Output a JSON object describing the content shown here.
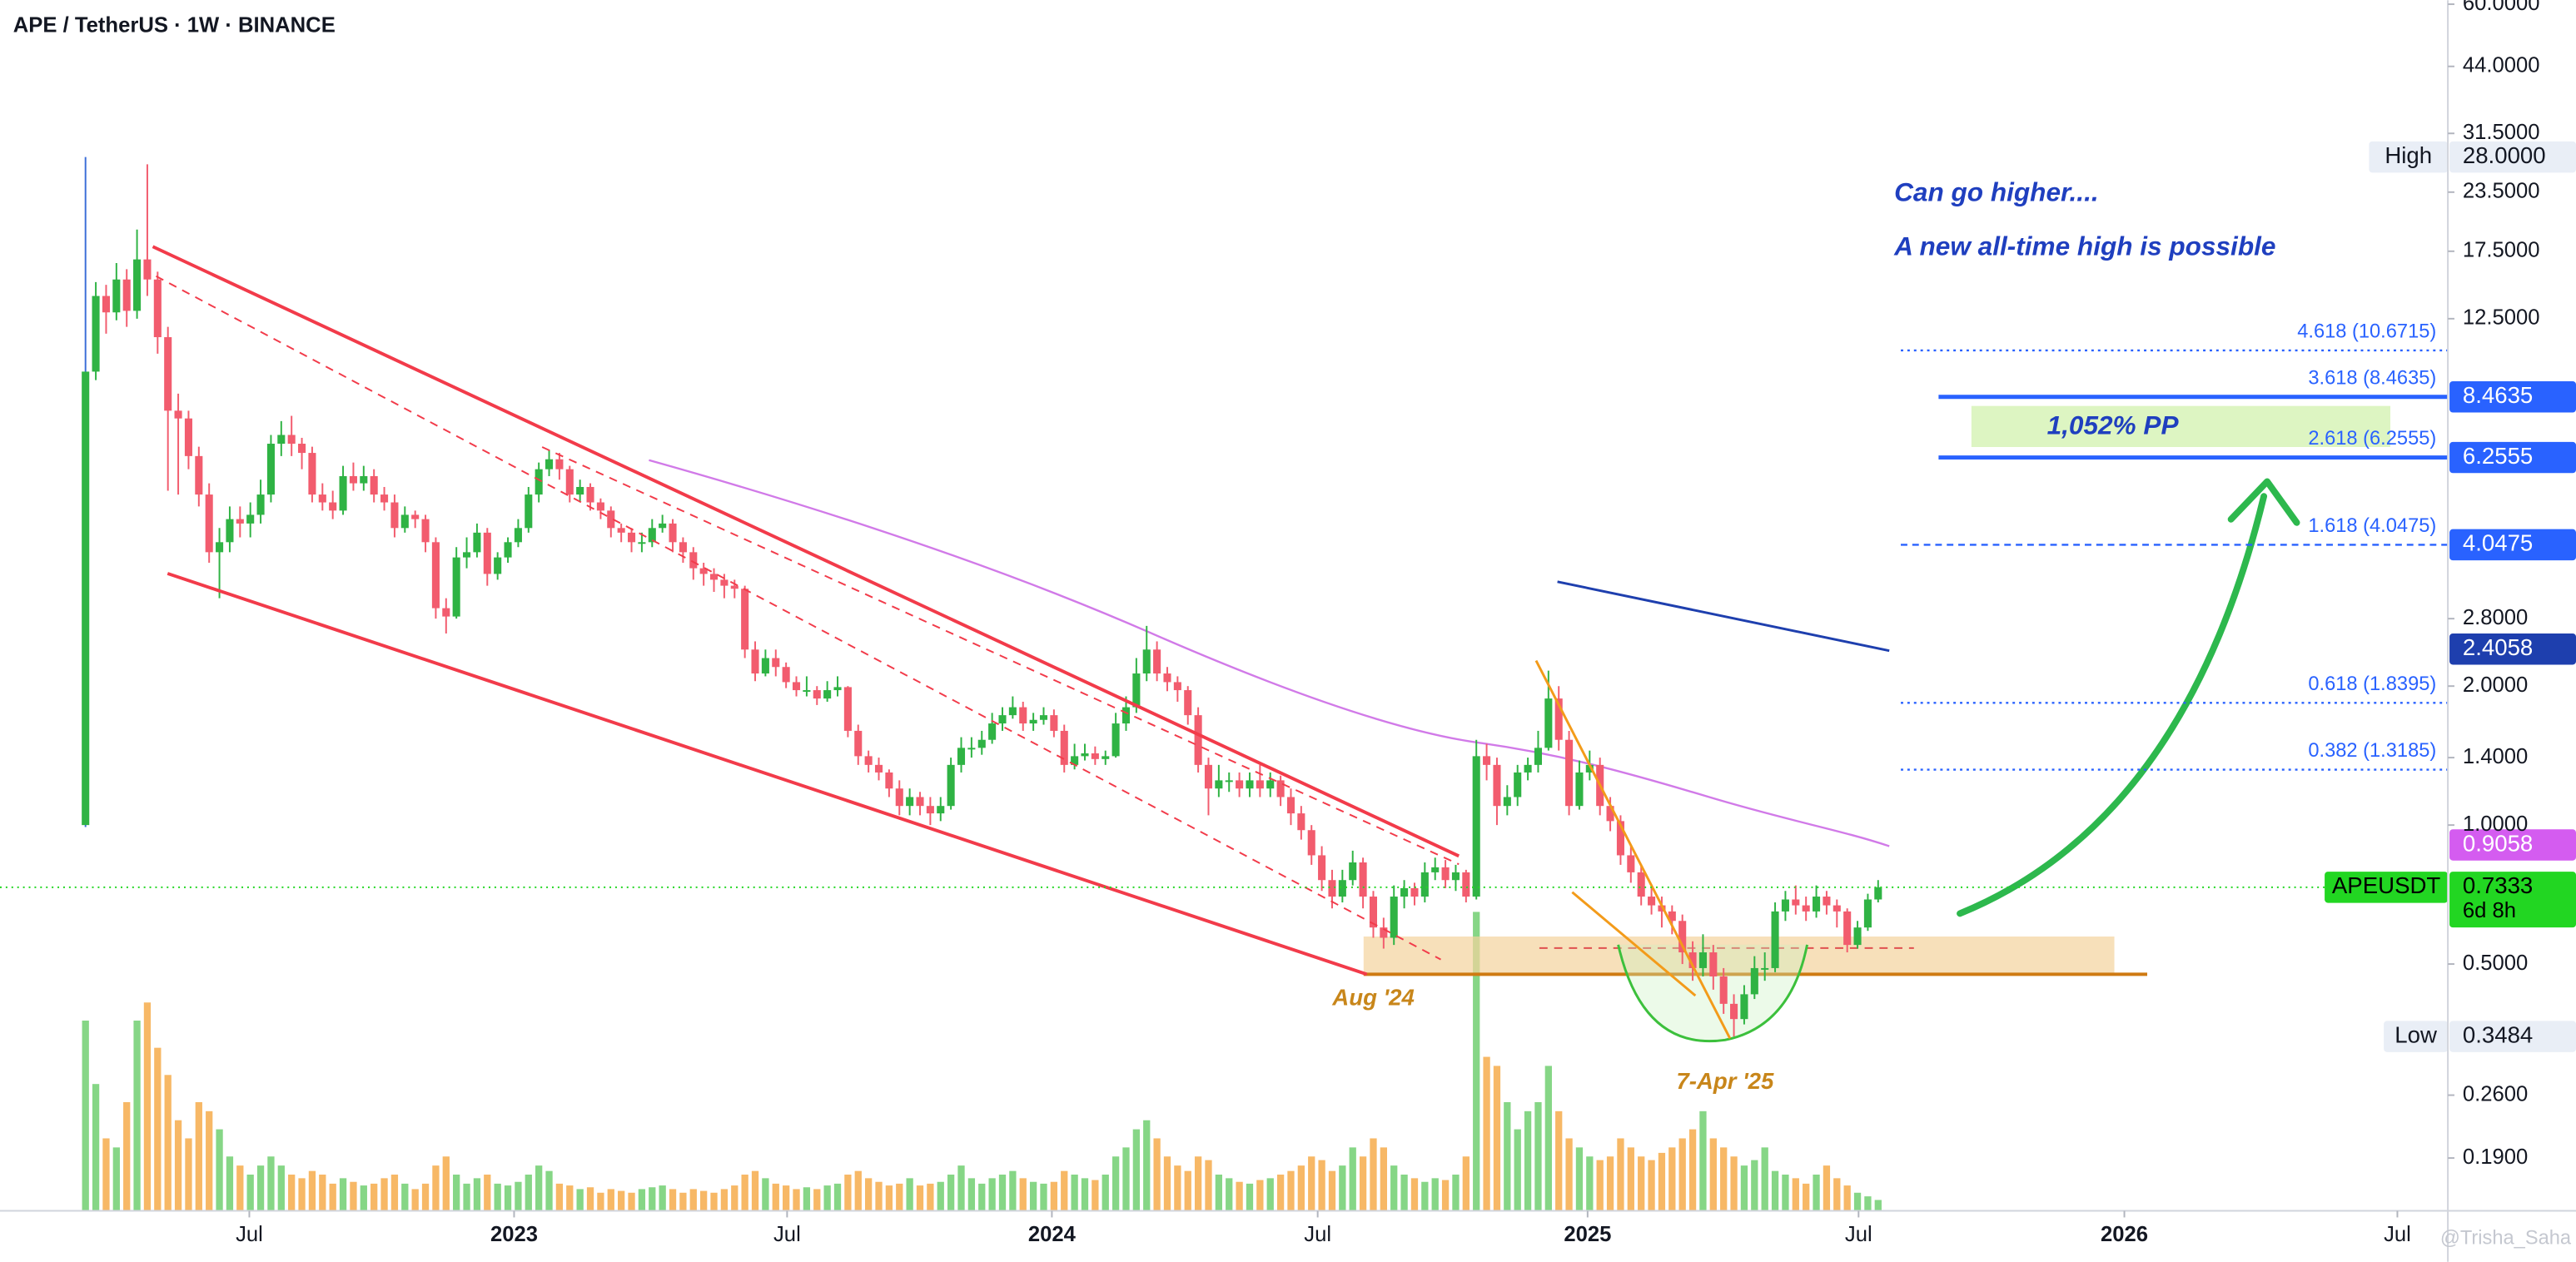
{
  "chart_data": {
    "type": "candlestick",
    "title": "APE / TetherUS · 1W · BINANCE",
    "log_scale": true,
    "up_color": "#2fb344",
    "down_color": "#f25c6e",
    "volume_up_color": "#86d686",
    "volume_down_color": "#f7b866",
    "xlim": [
      -8.3,
      229.3
    ],
    "xticks": [
      {
        "value": 15.9,
        "label": "Jul"
      },
      {
        "value": 41.6,
        "label": "2023"
      },
      {
        "value": 68.1,
        "label": "Jul"
      },
      {
        "value": 93.8,
        "label": "2024"
      },
      {
        "value": 119.6,
        "label": "Jul"
      },
      {
        "value": 145.8,
        "label": "2025"
      },
      {
        "value": 172.1,
        "label": "Jul"
      },
      {
        "value": 197.9,
        "label": "2026"
      },
      {
        "value": 224.4,
        "label": "Jul"
      }
    ],
    "ylim": [
      0.146,
      61.2
    ],
    "yticks": [
      {
        "value": 60,
        "label": "60.0000"
      },
      {
        "value": 44,
        "label": "44.0000"
      },
      {
        "value": 31.5,
        "label": "31.5000"
      },
      {
        "value": 23.5,
        "label": "23.5000"
      },
      {
        "value": 17.5,
        "label": "17.5000"
      },
      {
        "value": 12.5,
        "label": "12.5000"
      },
      {
        "value": 2.8,
        "label": "2.8000"
      },
      {
        "value": 2,
        "label": "2.0000"
      },
      {
        "value": 1.4,
        "label": "1.4000"
      },
      {
        "value": 1,
        "label": "1.0000"
      },
      {
        "value": 0.5,
        "label": "0.5000"
      },
      {
        "value": 0.26,
        "label": "0.2600"
      },
      {
        "value": 0.19,
        "label": "0.1900"
      }
    ],
    "candles": [
      [
        1.0,
        28,
        0.99,
        9.6
      ],
      [
        9.6,
        15,
        9.2,
        14.0
      ],
      [
        14.0,
        14.8,
        11.6,
        12.9
      ],
      [
        12.9,
        16.5,
        12.4,
        15.2
      ],
      [
        15.2,
        16,
        12,
        13.0
      ],
      [
        13.0,
        19.5,
        12.5,
        16.8
      ],
      [
        16.8,
        27,
        14,
        15.2
      ],
      [
        15.2,
        15.8,
        10.5,
        11.4
      ],
      [
        11.4,
        12,
        5.3,
        7.9
      ],
      [
        7.9,
        8.6,
        5.2,
        7.6
      ],
      [
        7.6,
        7.9,
        5.9,
        6.3
      ],
      [
        6.3,
        6.6,
        4.9,
        5.2
      ],
      [
        5.2,
        5.5,
        3.7,
        3.9
      ],
      [
        3.9,
        4.4,
        3.1,
        4.1
      ],
      [
        4.1,
        4.9,
        3.9,
        4.6
      ],
      [
        4.6,
        4.9,
        4.2,
        4.5
      ],
      [
        4.5,
        5.0,
        4.2,
        4.7
      ],
      [
        4.7,
        5.6,
        4.5,
        5.2
      ],
      [
        5.2,
        7.0,
        5.0,
        6.7
      ],
      [
        6.7,
        7.5,
        6.3,
        7.0
      ],
      [
        7.0,
        7.7,
        6.3,
        6.7
      ],
      [
        6.7,
        6.9,
        5.9,
        6.4
      ],
      [
        6.4,
        6.6,
        5.0,
        5.2
      ],
      [
        5.2,
        5.5,
        4.8,
        5.0
      ],
      [
        5.0,
        5.3,
        4.6,
        4.8
      ],
      [
        4.8,
        6.0,
        4.7,
        5.7
      ],
      [
        5.7,
        6.1,
        5.3,
        5.5
      ],
      [
        5.5,
        6.0,
        5.3,
        5.7
      ],
      [
        5.7,
        5.9,
        5.0,
        5.2
      ],
      [
        5.2,
        5.4,
        4.8,
        5.0
      ],
      [
        5.0,
        5.2,
        4.2,
        4.4
      ],
      [
        4.4,
        4.9,
        4.3,
        4.7
      ],
      [
        4.7,
        4.8,
        4.4,
        4.6
      ],
      [
        4.6,
        4.7,
        3.9,
        4.1
      ],
      [
        4.1,
        4.2,
        2.8,
        2.95
      ],
      [
        2.95,
        3.1,
        2.6,
        2.83
      ],
      [
        2.83,
        4.0,
        2.8,
        3.8
      ],
      [
        3.8,
        4.2,
        3.6,
        3.9
      ],
      [
        3.9,
        4.5,
        3.8,
        4.3
      ],
      [
        4.3,
        4.4,
        3.3,
        3.5
      ],
      [
        3.5,
        3.9,
        3.4,
        3.8
      ],
      [
        3.8,
        4.2,
        3.7,
        4.1
      ],
      [
        4.1,
        4.6,
        4.0,
        4.4
      ],
      [
        4.4,
        5.4,
        4.3,
        5.2
      ],
      [
        5.2,
        6.1,
        5.0,
        5.9
      ],
      [
        5.9,
        6.5,
        5.7,
        6.2
      ],
      [
        6.2,
        6.4,
        5.6,
        5.9
      ],
      [
        5.9,
        6.0,
        5.0,
        5.2
      ],
      [
        5.2,
        5.6,
        5.0,
        5.4
      ],
      [
        5.4,
        5.5,
        4.8,
        5.0
      ],
      [
        5.0,
        5.1,
        4.6,
        4.8
      ],
      [
        4.8,
        4.9,
        4.2,
        4.4
      ],
      [
        4.4,
        4.5,
        4.1,
        4.3
      ],
      [
        4.3,
        4.4,
        3.9,
        4.1
      ],
      [
        4.1,
        4.3,
        3.9,
        4.1
      ],
      [
        4.1,
        4.6,
        4.0,
        4.4
      ],
      [
        4.4,
        4.7,
        4.3,
        4.5
      ],
      [
        4.5,
        4.6,
        3.9,
        4.1
      ],
      [
        4.1,
        4.2,
        3.7,
        3.9
      ],
      [
        3.9,
        4.0,
        3.4,
        3.6
      ],
      [
        3.6,
        3.7,
        3.3,
        3.5
      ],
      [
        3.5,
        3.6,
        3.2,
        3.4
      ],
      [
        3.4,
        3.5,
        3.1,
        3.3
      ],
      [
        3.3,
        3.4,
        3.1,
        3.25
      ],
      [
        3.25,
        3.3,
        2.3,
        2.4
      ],
      [
        2.4,
        2.5,
        2.05,
        2.13
      ],
      [
        2.13,
        2.4,
        2.1,
        2.3
      ],
      [
        2.3,
        2.4,
        2.1,
        2.2
      ],
      [
        2.2,
        2.25,
        1.98,
        2.04
      ],
      [
        2.04,
        2.1,
        1.9,
        1.96
      ],
      [
        1.96,
        2.1,
        1.9,
        1.96
      ],
      [
        1.96,
        2.0,
        1.82,
        1.88
      ],
      [
        1.88,
        2.05,
        1.85,
        1.96
      ],
      [
        1.96,
        2.1,
        1.9,
        1.99
      ],
      [
        1.99,
        2.0,
        1.55,
        1.6
      ],
      [
        1.6,
        1.65,
        1.35,
        1.41
      ],
      [
        1.41,
        1.45,
        1.3,
        1.35
      ],
      [
        1.35,
        1.4,
        1.25,
        1.3
      ],
      [
        1.3,
        1.32,
        1.15,
        1.2
      ],
      [
        1.2,
        1.25,
        1.05,
        1.1
      ],
      [
        1.1,
        1.2,
        1.05,
        1.15
      ],
      [
        1.15,
        1.18,
        1.05,
        1.1
      ],
      [
        1.1,
        1.15,
        1.0,
        1.06
      ],
      [
        1.06,
        1.15,
        1.02,
        1.1
      ],
      [
        1.1,
        1.4,
        1.08,
        1.35
      ],
      [
        1.35,
        1.55,
        1.3,
        1.47
      ],
      [
        1.47,
        1.55,
        1.4,
        1.47
      ],
      [
        1.47,
        1.6,
        1.42,
        1.53
      ],
      [
        1.53,
        1.75,
        1.5,
        1.66
      ],
      [
        1.66,
        1.8,
        1.6,
        1.73
      ],
      [
        1.73,
        1.9,
        1.7,
        1.8
      ],
      [
        1.8,
        1.85,
        1.6,
        1.66
      ],
      [
        1.66,
        1.75,
        1.6,
        1.69
      ],
      [
        1.69,
        1.8,
        1.65,
        1.73
      ],
      [
        1.73,
        1.78,
        1.55,
        1.6
      ],
      [
        1.6,
        1.65,
        1.3,
        1.35
      ],
      [
        1.35,
        1.5,
        1.32,
        1.41
      ],
      [
        1.41,
        1.5,
        1.38,
        1.43
      ],
      [
        1.43,
        1.48,
        1.35,
        1.39
      ],
      [
        1.39,
        1.45,
        1.35,
        1.41
      ],
      [
        1.41,
        1.75,
        1.4,
        1.66
      ],
      [
        1.66,
        1.9,
        1.6,
        1.8
      ],
      [
        1.8,
        2.3,
        1.75,
        2.13
      ],
      [
        2.13,
        2.7,
        2.05,
        2.4
      ],
      [
        2.4,
        2.5,
        2.05,
        2.13
      ],
      [
        2.13,
        2.2,
        1.95,
        2.04
      ],
      [
        2.04,
        2.1,
        1.85,
        1.96
      ],
      [
        1.96,
        2.0,
        1.65,
        1.73
      ],
      [
        1.73,
        1.8,
        1.3,
        1.35
      ],
      [
        1.35,
        1.4,
        1.05,
        1.2
      ],
      [
        1.2,
        1.35,
        1.15,
        1.25
      ],
      [
        1.25,
        1.3,
        1.18,
        1.25
      ],
      [
        1.25,
        1.3,
        1.15,
        1.2
      ],
      [
        1.2,
        1.3,
        1.15,
        1.25
      ],
      [
        1.25,
        1.35,
        1.15,
        1.2
      ],
      [
        1.2,
        1.3,
        1.15,
        1.25
      ],
      [
        1.25,
        1.28,
        1.1,
        1.15
      ],
      [
        1.15,
        1.2,
        1.0,
        1.06
      ],
      [
        1.06,
        1.1,
        0.93,
        0.975
      ],
      [
        0.975,
        1.0,
        0.82,
        0.86
      ],
      [
        0.86,
        0.9,
        0.72,
        0.76
      ],
      [
        0.76,
        0.8,
        0.66,
        0.7
      ],
      [
        0.7,
        0.8,
        0.68,
        0.76
      ],
      [
        0.76,
        0.88,
        0.74,
        0.83
      ],
      [
        0.83,
        0.85,
        0.66,
        0.7
      ],
      [
        0.7,
        0.72,
        0.57,
        0.6
      ],
      [
        0.6,
        0.63,
        0.54,
        0.57
      ],
      [
        0.57,
        0.74,
        0.55,
        0.7
      ],
      [
        0.7,
        0.76,
        0.66,
        0.73
      ],
      [
        0.73,
        0.75,
        0.67,
        0.7
      ],
      [
        0.7,
        0.83,
        0.68,
        0.79
      ],
      [
        0.79,
        0.85,
        0.76,
        0.81
      ],
      [
        0.81,
        0.84,
        0.73,
        0.76
      ],
      [
        0.76,
        0.82,
        0.72,
        0.79
      ],
      [
        0.79,
        0.8,
        0.68,
        0.7
      ],
      [
        0.7,
        1.53,
        0.69,
        1.41
      ],
      [
        1.41,
        1.5,
        1.25,
        1.35
      ],
      [
        1.35,
        1.4,
        1.0,
        1.1
      ],
      [
        1.1,
        1.22,
        1.05,
        1.15
      ],
      [
        1.15,
        1.35,
        1.1,
        1.3
      ],
      [
        1.3,
        1.4,
        1.25,
        1.35
      ],
      [
        1.35,
        1.6,
        1.3,
        1.47
      ],
      [
        1.47,
        2.16,
        1.45,
        1.88
      ],
      [
        1.88,
        2.0,
        1.45,
        1.53
      ],
      [
        1.53,
        1.6,
        1.05,
        1.1
      ],
      [
        1.1,
        1.38,
        1.08,
        1.3
      ],
      [
        1.3,
        1.45,
        1.25,
        1.35
      ],
      [
        1.35,
        1.4,
        1.05,
        1.1
      ],
      [
        1.1,
        1.15,
        0.97,
        1.02
      ],
      [
        1.02,
        1.05,
        0.82,
        0.86
      ],
      [
        0.86,
        0.9,
        0.75,
        0.79
      ],
      [
        0.79,
        0.82,
        0.67,
        0.7
      ],
      [
        0.7,
        0.74,
        0.64,
        0.67
      ],
      [
        0.67,
        0.7,
        0.6,
        0.65
      ],
      [
        0.65,
        0.67,
        0.58,
        0.62
      ],
      [
        0.62,
        0.64,
        0.5,
        0.53
      ],
      [
        0.53,
        0.56,
        0.46,
        0.49
      ],
      [
        0.49,
        0.58,
        0.47,
        0.53
      ],
      [
        0.53,
        0.55,
        0.44,
        0.47
      ],
      [
        0.47,
        0.49,
        0.39,
        0.41
      ],
      [
        0.41,
        0.43,
        0.3484,
        0.38
      ],
      [
        0.38,
        0.45,
        0.37,
        0.43
      ],
      [
        0.43,
        0.52,
        0.42,
        0.49
      ],
      [
        0.49,
        0.53,
        0.46,
        0.49
      ],
      [
        0.49,
        0.68,
        0.48,
        0.65
      ],
      [
        0.65,
        0.72,
        0.62,
        0.69
      ],
      [
        0.69,
        0.74,
        0.64,
        0.67
      ],
      [
        0.67,
        0.7,
        0.62,
        0.65
      ],
      [
        0.65,
        0.74,
        0.63,
        0.7
      ],
      [
        0.7,
        0.72,
        0.64,
        0.67
      ],
      [
        0.67,
        0.69,
        0.6,
        0.65
      ],
      [
        0.65,
        0.66,
        0.53,
        0.55
      ],
      [
        0.55,
        0.62,
        0.54,
        0.6
      ],
      [
        0.6,
        0.71,
        0.59,
        0.69
      ],
      [
        0.69,
        0.76,
        0.68,
        0.7333
      ]
    ],
    "volume": [
      105,
      70,
      40,
      35,
      60,
      105,
      115,
      90,
      75,
      50,
      40,
      60,
      55,
      45,
      30,
      25,
      20,
      25,
      30,
      25,
      20,
      18,
      22,
      20,
      15,
      18,
      16,
      14,
      15,
      18,
      20,
      15,
      12,
      15,
      25,
      30,
      20,
      15,
      18,
      20,
      15,
      14,
      16,
      20,
      25,
      22,
      15,
      14,
      12,
      13,
      10,
      12,
      11,
      10,
      12,
      13,
      14,
      12,
      10,
      12,
      11,
      10,
      12,
      14,
      20,
      22,
      18,
      15,
      14,
      12,
      13,
      12,
      14,
      15,
      20,
      22,
      18,
      16,
      14,
      15,
      18,
      14,
      15,
      16,
      20,
      25,
      18,
      15,
      18,
      20,
      22,
      18,
      16,
      15,
      16,
      22,
      20,
      18,
      17,
      20,
      30,
      35,
      45,
      50,
      40,
      30,
      25,
      22,
      30,
      28,
      20,
      18,
      16,
      15,
      17,
      18,
      20,
      22,
      25,
      30,
      28,
      22,
      25,
      35,
      30,
      40,
      35,
      25,
      20,
      18,
      16,
      18,
      17,
      20,
      30,
      165,
      85,
      80,
      60,
      45,
      55,
      60,
      80,
      55,
      40,
      35,
      30,
      28,
      30,
      40,
      35,
      30,
      28,
      32,
      35,
      40,
      45,
      55,
      40,
      35,
      30,
      25,
      28,
      35,
      22,
      20,
      18,
      15,
      20,
      25,
      18,
      14,
      10,
      8,
      6
    ],
    "fib_levels": [
      {
        "label": "4.618 (10.6715)",
        "value": 10.6715,
        "line": "dotted"
      },
      {
        "label": "3.618 (8.4635)",
        "value": 8.4635,
        "line": "solid"
      },
      {
        "label": "2.618 (6.2555)",
        "value": 6.2555,
        "line": "solid"
      },
      {
        "label": "1.618 (4.0475)",
        "value": 4.0475,
        "line": "dashed"
      },
      {
        "label": "0.618 (1.8395)",
        "value": 1.8395,
        "line": "dotted"
      },
      {
        "label": "0.382 (1.3185)",
        "value": 1.3185,
        "line": "dotted"
      }
    ],
    "price_labels": [
      {
        "name": "High",
        "label": "28.0000",
        "value": 28,
        "color": "#e9eef6"
      },
      {
        "label": "8.4635",
        "value": 8.4635,
        "color": "#2962ff"
      },
      {
        "label": "6.2555",
        "value": 6.2555,
        "color": "#2962ff"
      },
      {
        "label": "4.0475",
        "value": 4.0475,
        "color": "#2962ff"
      },
      {
        "label": "2.4058",
        "value": 2.4058,
        "color": "#1e3fae"
      },
      {
        "label": "0.9058",
        "value": 0.9058,
        "color": "#d45cf0"
      },
      {
        "name": "APEUSDT",
        "label": "0.7333",
        "value": 0.7333,
        "color": "#22d622",
        "countdown": "6d 8h"
      },
      {
        "name": "Low",
        "label": "0.3484",
        "value": 0.3484,
        "color": "#e9eef6"
      }
    ],
    "annotations": [
      "Can go higher....",
      "A new all-time high is possible",
      "1,052% PP",
      "Aug '24",
      "7-Apr '25"
    ],
    "watermark": "@Trisha_Saha"
  }
}
